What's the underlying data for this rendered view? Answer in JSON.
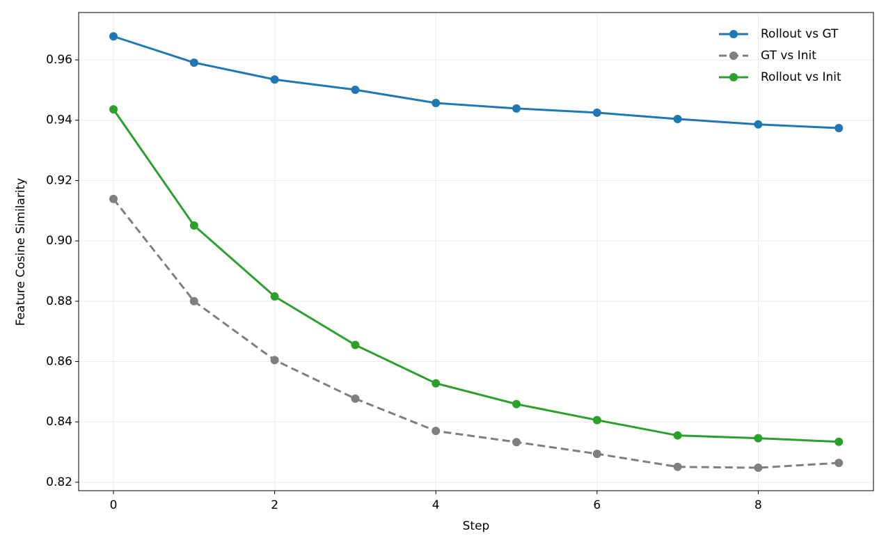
{
  "chart_data": {
    "type": "line",
    "xlabel": "Step",
    "ylabel": "Feature Cosine Similarity",
    "x": [
      0,
      1,
      2,
      3,
      4,
      5,
      6,
      7,
      8,
      9
    ],
    "series": [
      {
        "name": "Rollout vs GT",
        "color": "#1f77b4",
        "linestyle": "solid",
        "values": [
          0.9678,
          0.9591,
          0.9535,
          0.9501,
          0.9457,
          0.9439,
          0.9425,
          0.9404,
          0.9386,
          0.9374
        ]
      },
      {
        "name": "GT vs Init",
        "color": "#7f7f7f",
        "linestyle": "dashed",
        "values": [
          0.9139,
          0.88,
          0.8605,
          0.8477,
          0.837,
          0.8333,
          0.8294,
          0.8251,
          0.8248,
          0.8264
        ]
      },
      {
        "name": "Rollout vs Init",
        "color": "#2ca02c",
        "linestyle": "solid",
        "values": [
          0.9436,
          0.9051,
          0.8816,
          0.8655,
          0.8528,
          0.8459,
          0.8406,
          0.8355,
          0.8346,
          0.8334
        ]
      }
    ],
    "xlim": [
      -0.432,
      9.43
    ],
    "xticks": [
      0,
      2,
      4,
      6,
      8
    ],
    "ylim": [
      0.8172,
      0.9757
    ],
    "yticks": [
      0.82,
      0.84,
      0.86,
      0.88,
      {
        "value": 0.9,
        "label": "0.90"
      },
      0.92,
      0.94,
      0.96
    ],
    "grid": true,
    "legend": "upper right"
  }
}
